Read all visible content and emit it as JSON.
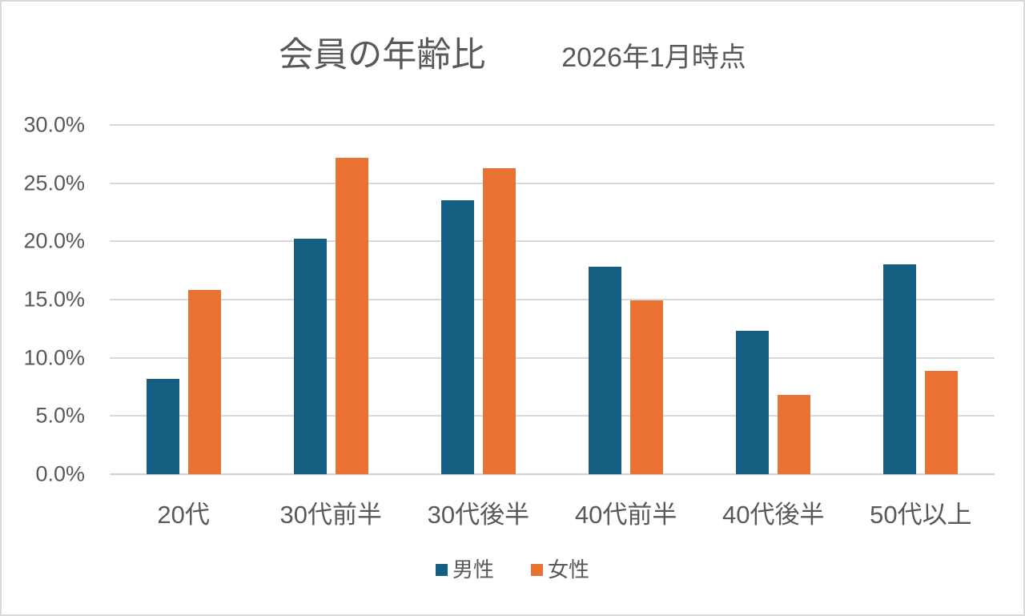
{
  "title": {
    "main": "会員の年齢比",
    "sub": "2026年1月時点"
  },
  "chart_data": {
    "type": "bar",
    "title": "会員の年齢比",
    "subtitle": "2026年1月時点",
    "categories": [
      "20代",
      "30代前半",
      "30代後半",
      "40代前半",
      "40代後半",
      "50代以上"
    ],
    "series": [
      {
        "name": "男性",
        "slug": "male",
        "color": "#156082",
        "values": [
          8.2,
          20.2,
          23.5,
          17.8,
          12.3,
          18.0
        ]
      },
      {
        "name": "女性",
        "slug": "female",
        "color": "#E97132",
        "values": [
          15.8,
          27.2,
          26.3,
          14.9,
          6.8,
          8.9
        ]
      }
    ],
    "value_unit": "percent",
    "ylim": [
      0,
      30
    ],
    "ytick_step": 5,
    "ytick_labels": [
      "0.0%",
      "5.0%",
      "10.0%",
      "15.0%",
      "20.0%",
      "25.0%",
      "30.0%"
    ],
    "grid": "horizontal",
    "legend_position": "bottom"
  },
  "colors": {
    "male_bar": "#156082",
    "female_bar": "#E97132",
    "text": "#595959",
    "gridline": "#D9D9D9"
  }
}
